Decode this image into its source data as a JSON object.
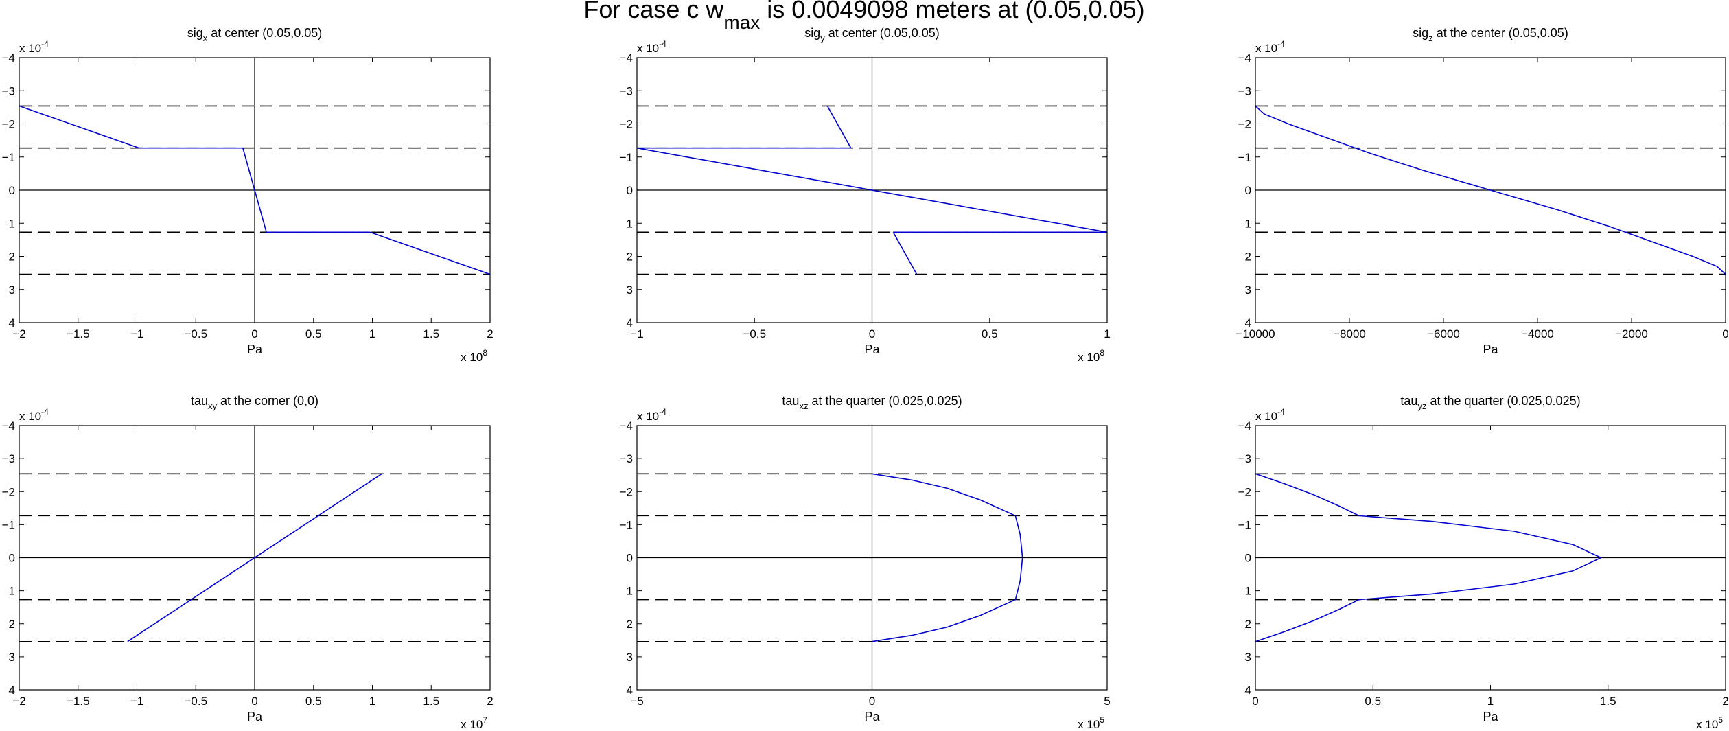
{
  "figure": {
    "title": "For case c w",
    "title_sub": "max",
    "title_rest": " is 0.0049098 meters at (0.05,0.05)"
  },
  "chart_data": [
    {
      "type": "line",
      "title": "sig",
      "title_sub": "x",
      "title_rest": " at center (0.05,0.05)",
      "xlabel": "Pa",
      "x_multiplier": "x 10",
      "x_multiplier_exp": "8",
      "y_multiplier": "x 10",
      "y_multiplier_exp": "-4",
      "xlim": [
        -2,
        2
      ],
      "ylim": [
        -4,
        4
      ],
      "y_reversed": true,
      "xticks": [
        -2,
        -1.5,
        -1,
        -0.5,
        0,
        0.5,
        1,
        1.5,
        2
      ],
      "xtick_labels": [
        "−2",
        "−1.5",
        "−1",
        "−0.5",
        "0",
        "0.5",
        "1",
        "1.5",
        "2"
      ],
      "yticks": [
        -4,
        -3,
        -2,
        -1,
        0,
        1,
        2,
        3,
        4
      ],
      "ytick_labels": [
        "−4",
        "−3",
        "−2",
        "−1",
        "0",
        "1",
        "2",
        "3",
        "4"
      ],
      "hlines_dashed": [
        -2.54,
        -1.27,
        1.27,
        2.54
      ],
      "hlines_solid": [
        0
      ],
      "vlines_solid": [
        0
      ],
      "series": [
        {
          "x": [
            -2,
            -0.98,
            -0.1,
            0,
            0.1,
            0.98,
            2
          ],
          "y": [
            -2.54,
            -1.27,
            -1.27,
            0,
            1.27,
            1.27,
            2.54
          ]
        }
      ]
    },
    {
      "type": "line",
      "title": "sig",
      "title_sub": "y",
      "title_rest": " at center (0.05,0.05)",
      "xlabel": "Pa",
      "x_multiplier": "x 10",
      "x_multiplier_exp": "8",
      "y_multiplier": "x 10",
      "y_multiplier_exp": "-4",
      "xlim": [
        -1,
        1
      ],
      "ylim": [
        -4,
        4
      ],
      "y_reversed": true,
      "xticks": [
        -1,
        -0.5,
        0,
        0.5,
        1
      ],
      "xtick_labels": [
        "−1",
        "−0.5",
        "0",
        "0.5",
        "1"
      ],
      "yticks": [
        -4,
        -3,
        -2,
        -1,
        0,
        1,
        2,
        3,
        4
      ],
      "ytick_labels": [
        "−4",
        "−3",
        "−2",
        "−1",
        "0",
        "1",
        "2",
        "3",
        "4"
      ],
      "hlines_dashed": [
        -2.54,
        -1.27,
        1.27,
        2.54
      ],
      "hlines_solid": [
        0
      ],
      "vlines_solid": [
        0
      ],
      "series": [
        {
          "x": [
            -0.19,
            -0.09
          ],
          "y": [
            -2.54,
            -1.27
          ]
        },
        {
          "x": [
            -0.09,
            -1,
            1,
            0.09
          ],
          "y": [
            -1.27,
            -1.27,
            1.27,
            1.27
          ]
        },
        {
          "x": [
            0.09,
            0.19
          ],
          "y": [
            1.27,
            2.54
          ]
        }
      ]
    },
    {
      "type": "line",
      "title": "sig",
      "title_sub": "z",
      "title_rest": " at the center (0.05,0.05)",
      "xlabel": "Pa",
      "x_multiplier": "",
      "x_multiplier_exp": "",
      "y_multiplier": "x 10",
      "y_multiplier_exp": "-4",
      "xlim": [
        -10000,
        0
      ],
      "ylim": [
        -4,
        4
      ],
      "y_reversed": true,
      "xticks": [
        -10000,
        -8000,
        -6000,
        -4000,
        -2000,
        0
      ],
      "xtick_labels": [
        "−10000",
        "−8000",
        "−6000",
        "−4000",
        "−2000",
        "0"
      ],
      "yticks": [
        -4,
        -3,
        -2,
        -1,
        0,
        1,
        2,
        3,
        4
      ],
      "ytick_labels": [
        "−4",
        "−3",
        "−2",
        "−1",
        "0",
        "1",
        "2",
        "3",
        "4"
      ],
      "hlines_dashed": [
        -2.54,
        -1.27,
        1.27,
        2.54
      ],
      "hlines_solid": [
        0
      ],
      "vlines_solid": [],
      "series": [
        {
          "x": [
            -10000,
            -9814,
            -9300,
            -8520,
            -7540,
            -6440,
            -5000,
            -3560,
            -2460,
            -1480,
            -700,
            -186,
            0
          ],
          "y": [
            -2.54,
            -2.3,
            -2.0,
            -1.6,
            -1.1,
            -0.6,
            0,
            0.6,
            1.1,
            1.6,
            2.0,
            2.3,
            2.54
          ]
        }
      ]
    },
    {
      "type": "line",
      "title": "tau",
      "title_sub": "xy",
      "title_rest": " at the corner (0,0)",
      "xlabel": "Pa",
      "x_multiplier": "x 10",
      "x_multiplier_exp": "7",
      "y_multiplier": "x 10",
      "y_multiplier_exp": "-4",
      "xlim": [
        -2,
        2
      ],
      "ylim": [
        -4,
        4
      ],
      "y_reversed": true,
      "xticks": [
        -2,
        -1.5,
        -1,
        -0.5,
        0,
        0.5,
        1,
        1.5,
        2
      ],
      "xtick_labels": [
        "−2",
        "−1.5",
        "−1",
        "−0.5",
        "0",
        "0.5",
        "1",
        "1.5",
        "2"
      ],
      "yticks": [
        -4,
        -3,
        -2,
        -1,
        0,
        1,
        2,
        3,
        4
      ],
      "ytick_labels": [
        "−4",
        "−3",
        "−2",
        "−1",
        "0",
        "1",
        "2",
        "3",
        "4"
      ],
      "hlines_dashed": [
        -2.54,
        -1.27,
        1.27,
        2.54
      ],
      "hlines_solid": [
        0
      ],
      "vlines_solid": [
        0
      ],
      "series": [
        {
          "x": [
            -1.08,
            1.08
          ],
          "y": [
            2.54,
            -2.54
          ]
        }
      ]
    },
    {
      "type": "line",
      "title": "tau",
      "title_sub": "xz",
      "title_rest": " at the quarter (0.025,0.025)",
      "xlabel": "Pa",
      "x_multiplier": "x 10",
      "x_multiplier_exp": "5",
      "y_multiplier": "x 10",
      "y_multiplier_exp": "-4",
      "xlim": [
        -5,
        5
      ],
      "ylim": [
        -4,
        4
      ],
      "y_reversed": true,
      "xticks": [
        -5,
        0,
        5
      ],
      "xtick_labels": [
        "−5",
        "0",
        "5"
      ],
      "yticks": [
        -4,
        -3,
        -2,
        -1,
        0,
        1,
        2,
        3,
        4
      ],
      "ytick_labels": [
        "−4",
        "−3",
        "−2",
        "−1",
        "0",
        "1",
        "2",
        "3",
        "4"
      ],
      "hlines_dashed": [
        -2.54,
        -1.27,
        1.27,
        2.54
      ],
      "hlines_solid": [
        0
      ],
      "vlines_solid": [
        0
      ],
      "series": [
        {
          "x": [
            0,
            0.85,
            1.6,
            2.3,
            3.05,
            3.15,
            3.2,
            3.15,
            3.05,
            2.3,
            1.6,
            0.85,
            0
          ],
          "y": [
            -2.54,
            -2.35,
            -2.1,
            -1.75,
            -1.27,
            -0.7,
            0,
            0.7,
            1.27,
            1.75,
            2.1,
            2.35,
            2.54
          ]
        }
      ]
    },
    {
      "type": "line",
      "title": "tau",
      "title_sub": "yz",
      "title_rest": " at the quarter (0.025,0.025)",
      "xlabel": "Pa",
      "x_multiplier": "x 10",
      "x_multiplier_exp": "5",
      "y_multiplier": "x 10",
      "y_multiplier_exp": "-4",
      "xlim": [
        0,
        2
      ],
      "ylim": [
        -4,
        4
      ],
      "y_reversed": true,
      "xticks": [
        0,
        0.5,
        1,
        1.5,
        2
      ],
      "xtick_labels": [
        "0",
        "0.5",
        "1",
        "1.5",
        "2"
      ],
      "yticks": [
        -4,
        -3,
        -2,
        -1,
        0,
        1,
        2,
        3,
        4
      ],
      "ytick_labels": [
        "−4",
        "−3",
        "−2",
        "−1",
        "0",
        "1",
        "2",
        "3",
        "4"
      ],
      "hlines_dashed": [
        -2.54,
        -1.27,
        1.27,
        2.54
      ],
      "hlines_solid": [
        0
      ],
      "vlines_solid": [],
      "series": [
        {
          "x": [
            0,
            0.12,
            0.25,
            0.36,
            0.44,
            0.75,
            1.1,
            1.35,
            1.47,
            1.35,
            1.1,
            0.75,
            0.44,
            0.36,
            0.25,
            0.12,
            0
          ],
          "y": [
            -2.54,
            -2.25,
            -1.9,
            -1.55,
            -1.27,
            -1.1,
            -0.8,
            -0.4,
            0,
            0.4,
            0.8,
            1.1,
            1.27,
            1.55,
            1.9,
            2.25,
            2.54
          ]
        }
      ]
    }
  ]
}
